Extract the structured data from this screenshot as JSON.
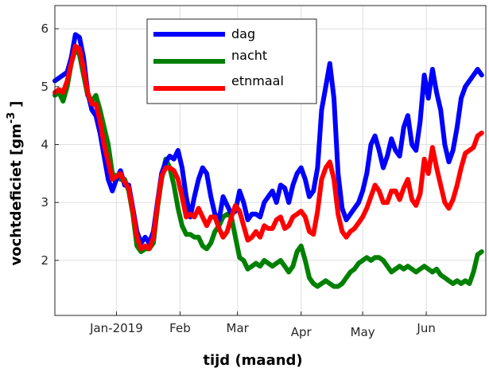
{
  "chart_data": {
    "type": "line",
    "title": "",
    "xlabel": "tijd (maand)",
    "ylabel": "vochtdeficiet [gm",
    "ylabel_exponent": "-3",
    "ylabel_close": "]",
    "x_tick_labels": [
      "Jan-2019",
      "Feb",
      "Mar",
      "Apr",
      "May",
      "Jun"
    ],
    "x_tick_days": [
      0,
      31,
      59,
      90,
      120,
      151
    ],
    "xlim_days": [
      -30,
      180
    ],
    "y_ticks": [
      2,
      3,
      4,
      5,
      6
    ],
    "ylim": [
      1.05,
      6.4
    ],
    "grid": true,
    "legend_position": "top-center",
    "series": [
      {
        "name": "dag",
        "color": "#0000ff",
        "points": [
          [
            -30,
            5.1
          ],
          [
            -28,
            5.15
          ],
          [
            -26,
            5.2
          ],
          [
            -24,
            5.25
          ],
          [
            -22,
            5.5
          ],
          [
            -20,
            5.9
          ],
          [
            -18,
            5.85
          ],
          [
            -16,
            5.5
          ],
          [
            -14,
            4.9
          ],
          [
            -12,
            4.6
          ],
          [
            -10,
            4.5
          ],
          [
            -8,
            4.2
          ],
          [
            -6,
            3.8
          ],
          [
            -4,
            3.4
          ],
          [
            -2,
            3.2
          ],
          [
            0,
            3.4
          ],
          [
            2,
            3.55
          ],
          [
            4,
            3.3
          ],
          [
            6,
            3.3
          ],
          [
            8,
            2.9
          ],
          [
            10,
            2.5
          ],
          [
            12,
            2.3
          ],
          [
            14,
            2.4
          ],
          [
            16,
            2.3
          ],
          [
            18,
            2.5
          ],
          [
            20,
            3.0
          ],
          [
            22,
            3.5
          ],
          [
            24,
            3.7
          ],
          [
            26,
            3.8
          ],
          [
            28,
            3.75
          ],
          [
            30,
            3.9
          ],
          [
            32,
            3.6
          ],
          [
            34,
            3.1
          ],
          [
            36,
            2.75
          ],
          [
            38,
            3.1
          ],
          [
            40,
            3.4
          ],
          [
            42,
            3.6
          ],
          [
            44,
            3.5
          ],
          [
            46,
            3.1
          ],
          [
            48,
            2.8
          ],
          [
            50,
            2.7
          ],
          [
            52,
            3.1
          ],
          [
            54,
            2.95
          ],
          [
            56,
            2.8
          ],
          [
            58,
            2.85
          ],
          [
            60,
            3.2
          ],
          [
            62,
            3.0
          ],
          [
            64,
            2.7
          ],
          [
            66,
            2.8
          ],
          [
            68,
            2.8
          ],
          [
            70,
            2.75
          ],
          [
            72,
            3.0
          ],
          [
            74,
            3.1
          ],
          [
            76,
            3.2
          ],
          [
            78,
            3.0
          ],
          [
            80,
            3.3
          ],
          [
            82,
            3.25
          ],
          [
            84,
            3.0
          ],
          [
            86,
            3.3
          ],
          [
            88,
            3.5
          ],
          [
            90,
            3.6
          ],
          [
            92,
            3.4
          ],
          [
            94,
            3.1
          ],
          [
            96,
            3.2
          ],
          [
            98,
            3.6
          ],
          [
            100,
            4.6
          ],
          [
            102,
            5.0
          ],
          [
            104,
            5.4
          ],
          [
            106,
            4.8
          ],
          [
            108,
            3.5
          ],
          [
            110,
            2.9
          ],
          [
            112,
            2.7
          ],
          [
            114,
            2.8
          ],
          [
            116,
            2.9
          ],
          [
            118,
            3.0
          ],
          [
            120,
            3.2
          ],
          [
            122,
            3.5
          ],
          [
            124,
            4.0
          ],
          [
            126,
            4.15
          ],
          [
            128,
            3.9
          ],
          [
            130,
            3.6
          ],
          [
            132,
            3.8
          ],
          [
            134,
            4.1
          ],
          [
            136,
            3.9
          ],
          [
            138,
            3.8
          ],
          [
            140,
            4.3
          ],
          [
            142,
            4.5
          ],
          [
            144,
            4.0
          ],
          [
            146,
            3.9
          ],
          [
            148,
            4.4
          ],
          [
            150,
            5.2
          ],
          [
            152,
            4.8
          ],
          [
            154,
            5.3
          ],
          [
            156,
            4.9
          ],
          [
            158,
            4.6
          ],
          [
            160,
            4.0
          ],
          [
            162,
            3.7
          ],
          [
            164,
            3.9
          ],
          [
            166,
            4.3
          ],
          [
            168,
            4.8
          ],
          [
            170,
            5.0
          ],
          [
            172,
            5.1
          ],
          [
            174,
            5.2
          ],
          [
            176,
            5.3
          ],
          [
            178,
            5.2
          ]
        ]
      },
      {
        "name": "nacht",
        "color": "#008000",
        "points": [
          [
            -30,
            4.85
          ],
          [
            -28,
            4.9
          ],
          [
            -26,
            4.75
          ],
          [
            -24,
            5.0
          ],
          [
            -22,
            5.4
          ],
          [
            -20,
            5.65
          ],
          [
            -18,
            5.55
          ],
          [
            -16,
            5.2
          ],
          [
            -14,
            4.85
          ],
          [
            -12,
            4.75
          ],
          [
            -10,
            4.85
          ],
          [
            -8,
            4.6
          ],
          [
            -6,
            4.3
          ],
          [
            -4,
            4.0
          ],
          [
            -2,
            3.5
          ],
          [
            0,
            3.45
          ],
          [
            2,
            3.4
          ],
          [
            4,
            3.4
          ],
          [
            6,
            3.2
          ],
          [
            8,
            2.8
          ],
          [
            10,
            2.25
          ],
          [
            12,
            2.15
          ],
          [
            14,
            2.2
          ],
          [
            16,
            2.2
          ],
          [
            18,
            2.3
          ],
          [
            20,
            2.9
          ],
          [
            22,
            3.4
          ],
          [
            24,
            3.75
          ],
          [
            26,
            3.6
          ],
          [
            28,
            3.3
          ],
          [
            30,
            2.9
          ],
          [
            32,
            2.6
          ],
          [
            34,
            2.45
          ],
          [
            36,
            2.45
          ],
          [
            38,
            2.4
          ],
          [
            40,
            2.4
          ],
          [
            42,
            2.25
          ],
          [
            44,
            2.2
          ],
          [
            46,
            2.3
          ],
          [
            48,
            2.5
          ],
          [
            50,
            2.6
          ],
          [
            52,
            2.75
          ],
          [
            54,
            2.8
          ],
          [
            56,
            2.75
          ],
          [
            58,
            2.4
          ],
          [
            60,
            2.05
          ],
          [
            62,
            2.0
          ],
          [
            64,
            1.85
          ],
          [
            66,
            1.9
          ],
          [
            68,
            1.95
          ],
          [
            70,
            1.9
          ],
          [
            72,
            2.0
          ],
          [
            74,
            1.95
          ],
          [
            76,
            1.9
          ],
          [
            78,
            1.95
          ],
          [
            80,
            2.0
          ],
          [
            82,
            1.9
          ],
          [
            84,
            1.8
          ],
          [
            86,
            1.9
          ],
          [
            88,
            2.15
          ],
          [
            90,
            2.25
          ],
          [
            92,
            2.0
          ],
          [
            94,
            1.7
          ],
          [
            96,
            1.6
          ],
          [
            98,
            1.55
          ],
          [
            100,
            1.6
          ],
          [
            102,
            1.65
          ],
          [
            104,
            1.6
          ],
          [
            106,
            1.55
          ],
          [
            108,
            1.55
          ],
          [
            110,
            1.6
          ],
          [
            112,
            1.7
          ],
          [
            114,
            1.8
          ],
          [
            116,
            1.85
          ],
          [
            118,
            1.95
          ],
          [
            120,
            2.0
          ],
          [
            122,
            2.05
          ],
          [
            124,
            2.0
          ],
          [
            126,
            2.05
          ],
          [
            128,
            2.05
          ],
          [
            130,
            2.0
          ],
          [
            132,
            1.9
          ],
          [
            134,
            1.8
          ],
          [
            136,
            1.85
          ],
          [
            138,
            1.9
          ],
          [
            140,
            1.85
          ],
          [
            142,
            1.9
          ],
          [
            144,
            1.85
          ],
          [
            146,
            1.8
          ],
          [
            148,
            1.85
          ],
          [
            150,
            1.9
          ],
          [
            152,
            1.85
          ],
          [
            154,
            1.8
          ],
          [
            156,
            1.85
          ],
          [
            158,
            1.75
          ],
          [
            160,
            1.7
          ],
          [
            162,
            1.65
          ],
          [
            164,
            1.6
          ],
          [
            166,
            1.65
          ],
          [
            168,
            1.6
          ],
          [
            170,
            1.65
          ],
          [
            172,
            1.6
          ],
          [
            174,
            1.8
          ],
          [
            176,
            2.1
          ],
          [
            178,
            2.15
          ]
        ]
      },
      {
        "name": "etnmaal",
        "color": "#ff0000",
        "points": [
          [
            -30,
            4.9
          ],
          [
            -28,
            4.95
          ],
          [
            -26,
            4.9
          ],
          [
            -24,
            5.1
          ],
          [
            -22,
            5.4
          ],
          [
            -20,
            5.7
          ],
          [
            -18,
            5.65
          ],
          [
            -16,
            5.3
          ],
          [
            -14,
            4.9
          ],
          [
            -12,
            4.7
          ],
          [
            -10,
            4.7
          ],
          [
            -8,
            4.4
          ],
          [
            -6,
            4.0
          ],
          [
            -4,
            3.7
          ],
          [
            -2,
            3.4
          ],
          [
            0,
            3.45
          ],
          [
            2,
            3.5
          ],
          [
            4,
            3.35
          ],
          [
            6,
            3.25
          ],
          [
            8,
            2.85
          ],
          [
            10,
            2.4
          ],
          [
            12,
            2.2
          ],
          [
            14,
            2.25
          ],
          [
            16,
            2.2
          ],
          [
            18,
            2.4
          ],
          [
            20,
            2.95
          ],
          [
            22,
            3.45
          ],
          [
            24,
            3.6
          ],
          [
            26,
            3.6
          ],
          [
            28,
            3.55
          ],
          [
            30,
            3.4
          ],
          [
            32,
            3.1
          ],
          [
            34,
            2.75
          ],
          [
            36,
            2.8
          ],
          [
            38,
            2.75
          ],
          [
            40,
            2.9
          ],
          [
            42,
            2.75
          ],
          [
            44,
            2.6
          ],
          [
            46,
            2.75
          ],
          [
            48,
            2.75
          ],
          [
            50,
            2.55
          ],
          [
            52,
            2.4
          ],
          [
            54,
            2.5
          ],
          [
            56,
            2.75
          ],
          [
            58,
            2.95
          ],
          [
            60,
            2.85
          ],
          [
            62,
            2.6
          ],
          [
            64,
            2.35
          ],
          [
            66,
            2.4
          ],
          [
            68,
            2.5
          ],
          [
            70,
            2.4
          ],
          [
            72,
            2.6
          ],
          [
            74,
            2.55
          ],
          [
            76,
            2.55
          ],
          [
            78,
            2.7
          ],
          [
            80,
            2.75
          ],
          [
            82,
            2.55
          ],
          [
            84,
            2.6
          ],
          [
            86,
            2.75
          ],
          [
            88,
            2.8
          ],
          [
            90,
            2.85
          ],
          [
            92,
            2.75
          ],
          [
            94,
            2.5
          ],
          [
            96,
            2.45
          ],
          [
            98,
            2.85
          ],
          [
            100,
            3.4
          ],
          [
            102,
            3.6
          ],
          [
            104,
            3.7
          ],
          [
            106,
            3.4
          ],
          [
            108,
            2.8
          ],
          [
            110,
            2.5
          ],
          [
            112,
            2.4
          ],
          [
            114,
            2.5
          ],
          [
            116,
            2.55
          ],
          [
            118,
            2.65
          ],
          [
            120,
            2.75
          ],
          [
            122,
            2.9
          ],
          [
            124,
            3.1
          ],
          [
            126,
            3.3
          ],
          [
            128,
            3.2
          ],
          [
            130,
            3.0
          ],
          [
            132,
            3.0
          ],
          [
            134,
            3.2
          ],
          [
            136,
            3.2
          ],
          [
            138,
            3.05
          ],
          [
            140,
            3.25
          ],
          [
            142,
            3.4
          ],
          [
            144,
            3.05
          ],
          [
            146,
            2.95
          ],
          [
            148,
            3.15
          ],
          [
            150,
            3.75
          ],
          [
            152,
            3.5
          ],
          [
            154,
            3.95
          ],
          [
            156,
            3.6
          ],
          [
            158,
            3.3
          ],
          [
            160,
            3.0
          ],
          [
            162,
            2.9
          ],
          [
            164,
            3.05
          ],
          [
            166,
            3.3
          ],
          [
            168,
            3.6
          ],
          [
            170,
            3.85
          ],
          [
            172,
            3.9
          ],
          [
            174,
            3.95
          ],
          [
            176,
            4.15
          ],
          [
            178,
            4.2
          ]
        ]
      }
    ]
  }
}
